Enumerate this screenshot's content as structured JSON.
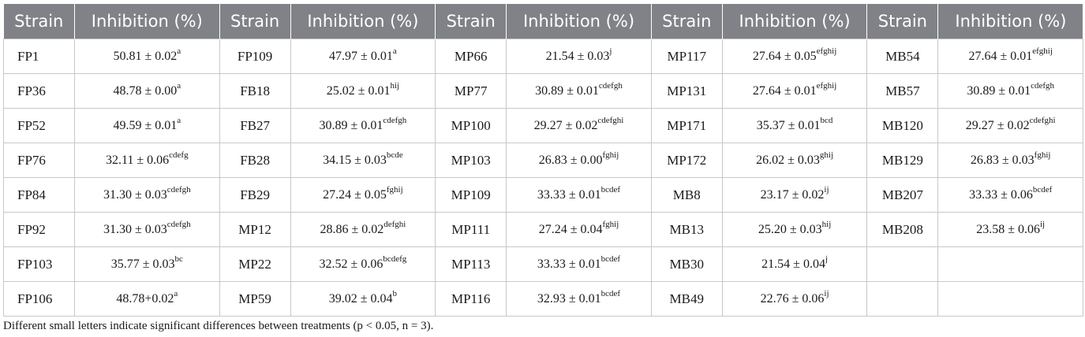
{
  "table": {
    "headers": [
      "Strain",
      "Inhibition (%)",
      "Strain",
      "Inhibition (%)",
      "Strain",
      "Inhibition (%)",
      "Strain",
      "Inhibition (%)",
      "Strain",
      "Inhibition (%)"
    ],
    "rows": [
      [
        {
          "s": "FP1",
          "v": "50.81 ± 0.02",
          "sup": "a"
        },
        {
          "s": "FP109",
          "v": "47.97 ± 0.01",
          "sup": "a"
        },
        {
          "s": "MP66",
          "v": "21.54 ± 0.03",
          "sup": "j"
        },
        {
          "s": "MP117",
          "v": "27.64 ± 0.05",
          "sup": "efghij"
        },
        {
          "s": "MB54",
          "v": "27.64 ± 0.01",
          "sup": "efghij"
        }
      ],
      [
        {
          "s": "FP36",
          "v": "48.78 ± 0.00",
          "sup": "a"
        },
        {
          "s": "FB18",
          "v": "25.02 ± 0.01",
          "sup": "hij"
        },
        {
          "s": "MP77",
          "v": "30.89 ± 0.01",
          "sup": "cdefgh"
        },
        {
          "s": "MP131",
          "v": "27.64 ± 0.01",
          "sup": "efghij"
        },
        {
          "s": "MB57",
          "v": "30.89 ± 0.01",
          "sup": "cdefgh"
        }
      ],
      [
        {
          "s": "FP52",
          "v": "49.59 ± 0.01",
          "sup": "a"
        },
        {
          "s": "FB27",
          "v": "30.89 ± 0.01",
          "sup": "cdefgh"
        },
        {
          "s": "MP100",
          "v": "29.27 ± 0.02",
          "sup": "cdefghi"
        },
        {
          "s": "MP171",
          "v": "35.37 ± 0.01",
          "sup": "bcd"
        },
        {
          "s": "MB120",
          "v": "29.27 ± 0.02",
          "sup": "cdefghi"
        }
      ],
      [
        {
          "s": "FP76",
          "v": "32.11 ± 0.06",
          "sup": "cdefg"
        },
        {
          "s": "FB28",
          "v": "34.15 ± 0.03",
          "sup": "bcde"
        },
        {
          "s": "MP103",
          "v": "26.83 ± 0.00",
          "sup": "fghij"
        },
        {
          "s": "MP172",
          "v": "26.02 ± 0.03",
          "sup": "ghij"
        },
        {
          "s": "MB129",
          "v": "26.83 ± 0.03",
          "sup": "fghij"
        }
      ],
      [
        {
          "s": "FP84",
          "v": "31.30 ± 0.03",
          "sup": "cdefgh"
        },
        {
          "s": "FB29",
          "v": "27.24 ± 0.05",
          "sup": "fghij"
        },
        {
          "s": "MP109",
          "v": "33.33 ± 0.01",
          "sup": "bcdef"
        },
        {
          "s": "MB8",
          "v": "23.17 ± 0.02",
          "sup": "ij"
        },
        {
          "s": "MB207",
          "v": "33.33 ± 0.06",
          "sup": "bcdef"
        }
      ],
      [
        {
          "s": "FP92",
          "v": "31.30 ± 0.03",
          "sup": "cdefgh"
        },
        {
          "s": "MP12",
          "v": "28.86 ± 0.02",
          "sup": "defghi"
        },
        {
          "s": "MP111",
          "v": "27.24 ± 0.04",
          "sup": "fghij"
        },
        {
          "s": "MB13",
          "v": "25.20 ± 0.03",
          "sup": "hij"
        },
        {
          "s": "MB208",
          "v": "23.58 ± 0.06",
          "sup": "ij"
        }
      ],
      [
        {
          "s": "FP103",
          "v": "35.77 ± 0.03",
          "sup": "bc"
        },
        {
          "s": "MP22",
          "v": "32.52 ± 0.06",
          "sup": "bcdefg"
        },
        {
          "s": "MP113",
          "v": "33.33 ± 0.01",
          "sup": "bcdef"
        },
        {
          "s": "MB30",
          "v": "21.54 ± 0.04",
          "sup": "j"
        },
        {
          "s": "",
          "v": "",
          "sup": ""
        }
      ],
      [
        {
          "s": "FP106",
          "v": "48.78+0.02",
          "sup": "a"
        },
        {
          "s": "MP59",
          "v": "39.02 ± 0.04",
          "sup": "b"
        },
        {
          "s": "MP116",
          "v": "32.93 ± 0.01",
          "sup": "bcdef"
        },
        {
          "s": "MB49",
          "v": "22.76 ± 0.06",
          "sup": "ij"
        },
        {
          "s": "",
          "v": "",
          "sup": ""
        }
      ]
    ]
  },
  "footnote": {
    "text": "Different small letters indicate significant differences between treatments (p < 0.05, n = 3)."
  },
  "colors": {
    "header_bg": "#808287",
    "header_text": "#ffffff",
    "grid": "#c8c8c8"
  }
}
